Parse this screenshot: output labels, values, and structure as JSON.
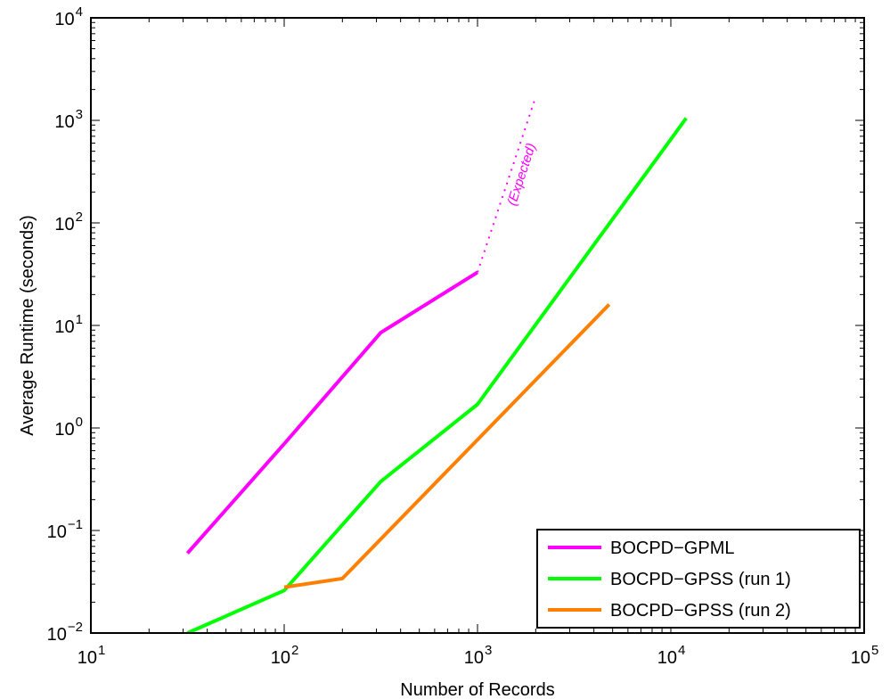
{
  "chart_data": {
    "type": "line",
    "xlabel": "Number of Records",
    "ylabel": "Average Runtime (seconds)",
    "xscale": "log",
    "yscale": "log",
    "xlim": [
      10,
      100000
    ],
    "ylim": [
      0.01,
      10000
    ],
    "x_ticks": [
      {
        "value": 10,
        "base": "10",
        "exp": "1"
      },
      {
        "value": 100,
        "base": "10",
        "exp": "2"
      },
      {
        "value": 1000,
        "base": "10",
        "exp": "3"
      },
      {
        "value": 10000,
        "base": "10",
        "exp": "4"
      },
      {
        "value": 100000,
        "base": "10",
        "exp": "5"
      }
    ],
    "y_ticks": [
      {
        "value": 0.01,
        "base": "10",
        "exp": "−2"
      },
      {
        "value": 0.1,
        "base": "10",
        "exp": "−1"
      },
      {
        "value": 1,
        "base": "10",
        "exp": "0"
      },
      {
        "value": 10,
        "base": "10",
        "exp": "1"
      },
      {
        "value": 100,
        "base": "10",
        "exp": "2"
      },
      {
        "value": 1000,
        "base": "10",
        "exp": "3"
      },
      {
        "value": 10000,
        "base": "10",
        "exp": "4"
      }
    ],
    "grid": false,
    "legend_position": "bottom-right",
    "series": [
      {
        "name": "BOCPD−GPML",
        "color": "#ff00ff",
        "x": [
          31.6,
          100,
          316,
          1000
        ],
        "y": [
          0.06,
          0.7,
          8.5,
          33
        ]
      },
      {
        "name": "BOCPD−GPSS (run 1)",
        "color": "#00ff00",
        "x": [
          31.6,
          100,
          316,
          1000,
          12000
        ],
        "y": [
          0.01,
          0.026,
          0.3,
          1.7,
          1050
        ]
      },
      {
        "name": "BOCPD−GPSS (run 2)",
        "color": "#ff8000",
        "x": [
          100,
          200,
          4800
        ],
        "y": [
          0.028,
          0.034,
          16
        ]
      }
    ],
    "extrapolation": {
      "label": "(Expected)",
      "color": "#ff00ff",
      "style": "dotted",
      "x": [
        1000,
        2000
      ],
      "y": [
        33,
        1700
      ]
    }
  }
}
